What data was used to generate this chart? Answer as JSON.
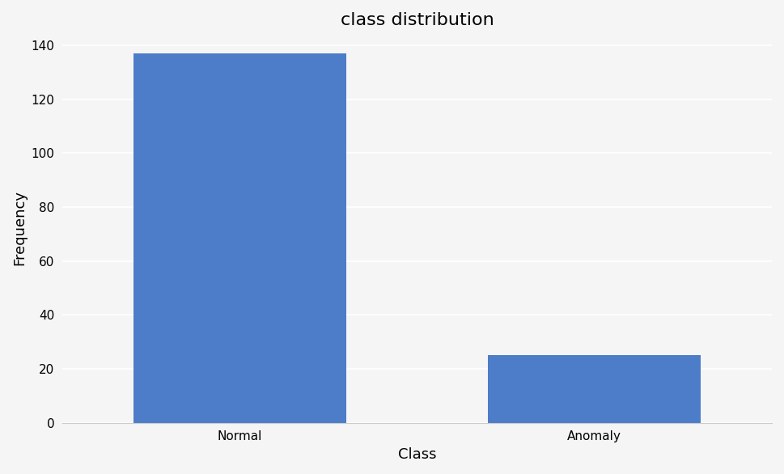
{
  "categories": [
    "Normal",
    "Anomaly"
  ],
  "values": [
    137,
    25
  ],
  "bar_color": "#4d7cc9",
  "title": "class distribution",
  "xlabel": "Class",
  "ylabel": "Frequency",
  "ylim": [
    0,
    145
  ],
  "yticks": [
    0,
    20,
    40,
    60,
    80,
    100,
    120,
    140
  ],
  "background_color": "#f5f5f5",
  "grid_color": "#ffffff",
  "title_fontsize": 16,
  "label_fontsize": 13,
  "tick_fontsize": 11,
  "bar_width": 0.6
}
